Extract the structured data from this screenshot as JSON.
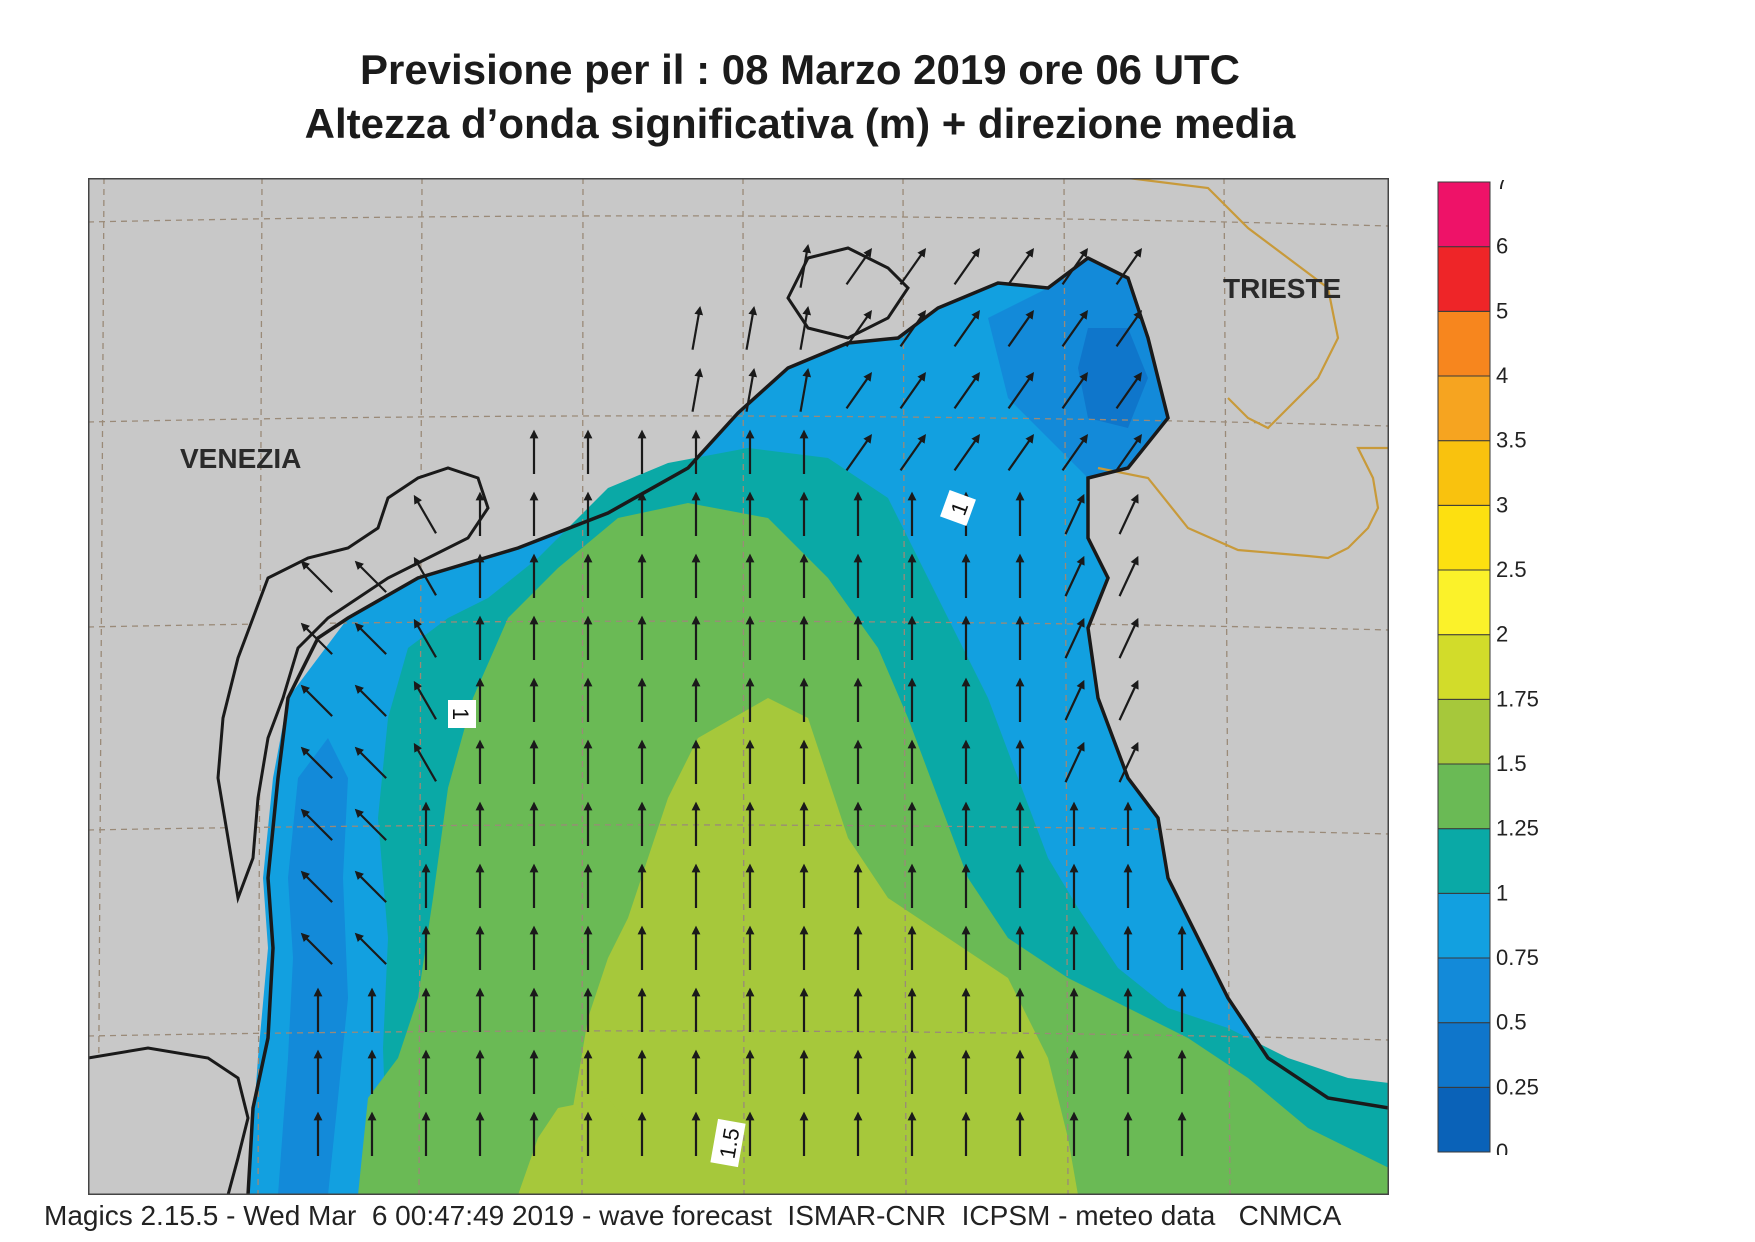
{
  "title": {
    "line1": "Previsione per il  :  08   Marzo   2019   ore 06 UTC",
    "line2": "Altezza d’onda significativa (m) + direzione media"
  },
  "cities": {
    "venezia": "VENEZIA",
    "trieste": "TRIESTE"
  },
  "contour_labels": [
    "1",
    "1",
    "1.5"
  ],
  "colorbar": {
    "levels": [
      "0",
      "0.25",
      "0.5",
      "0.75",
      "1",
      "1.25",
      "1.5",
      "1.75",
      "2",
      "2.5",
      "3",
      "3.5",
      "4",
      "5",
      "6",
      "7"
    ],
    "colors": [
      "#0a62b8",
      "#0f76cb",
      "#138ad9",
      "#12a0e0",
      "#0aa9a6",
      "#6aba55",
      "#a6c83b",
      "#d2dc2a",
      "#fbf22a",
      "#fde010",
      "#f9c20e",
      "#f6a420",
      "#f7861e",
      "#ee2528",
      "#ee1268"
    ]
  },
  "colors": {
    "land": "#c8c8c8",
    "coast": "#1a1a1a",
    "border": "#c89a3a",
    "grid": "#9a8a78"
  },
  "footer": "Magics 2.15.5 - Wed Mar  6 00:47:49 2019 - wave forecast  ISMAR-CNR  ICPSM - meteo data   CNMCA"
}
